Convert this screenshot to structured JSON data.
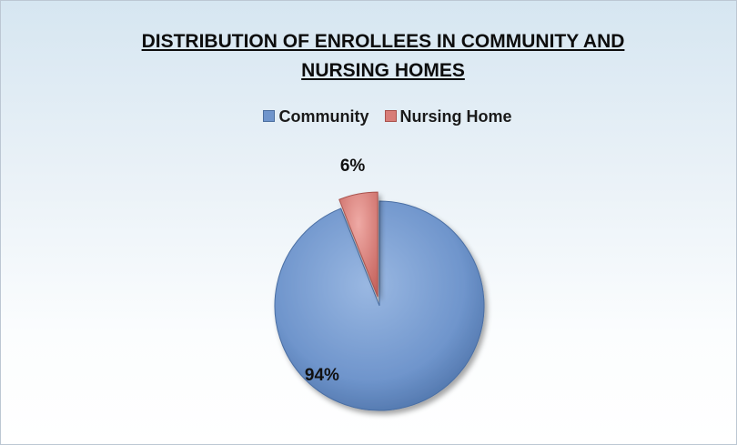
{
  "chart_data": {
    "type": "pie",
    "title_lines": [
      "DISTRIBUTION OF ENROLLEES IN COMMUNITY AND",
      "NURSING HOMES"
    ],
    "legend_position": "top",
    "categories": [
      "Community",
      "Nursing Home"
    ],
    "values": [
      94,
      6
    ],
    "data_labels": [
      "94%",
      "6%"
    ],
    "colors": [
      "#6f95cc",
      "#d87d78"
    ],
    "exploded": "Nursing Home"
  }
}
